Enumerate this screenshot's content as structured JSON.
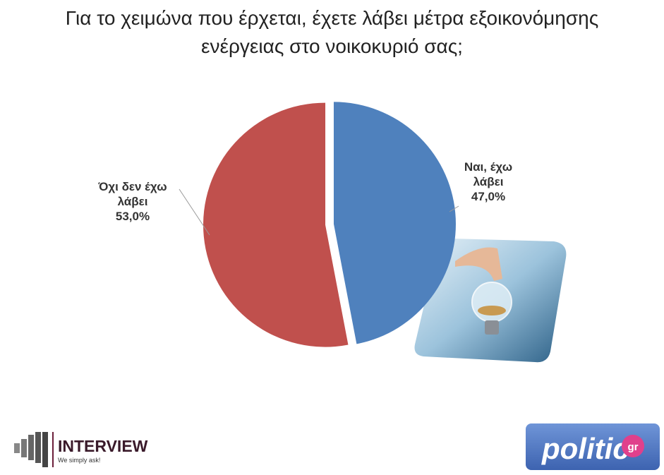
{
  "chart_data": {
    "type": "pie",
    "title": "Για το χειμώνα που έρχεται, έχετε λάβει μέτρα εξοικονόμησης ενέργειας στο νοικοκυριό σας;",
    "categories": [
      "Ναι, έχω λάβει",
      "Όχι δεν έχω λάβει"
    ],
    "values": [
      47,
      53
    ],
    "value_labels": [
      "47,0%",
      "53,0%"
    ],
    "colors": [
      "#4f81bd",
      "#c0504d"
    ]
  },
  "logos": {
    "interview": {
      "name": "INTERVIEW",
      "tagline": "We simply ask!"
    },
    "politic": {
      "name": "politic",
      "suffix": "gr"
    }
  }
}
